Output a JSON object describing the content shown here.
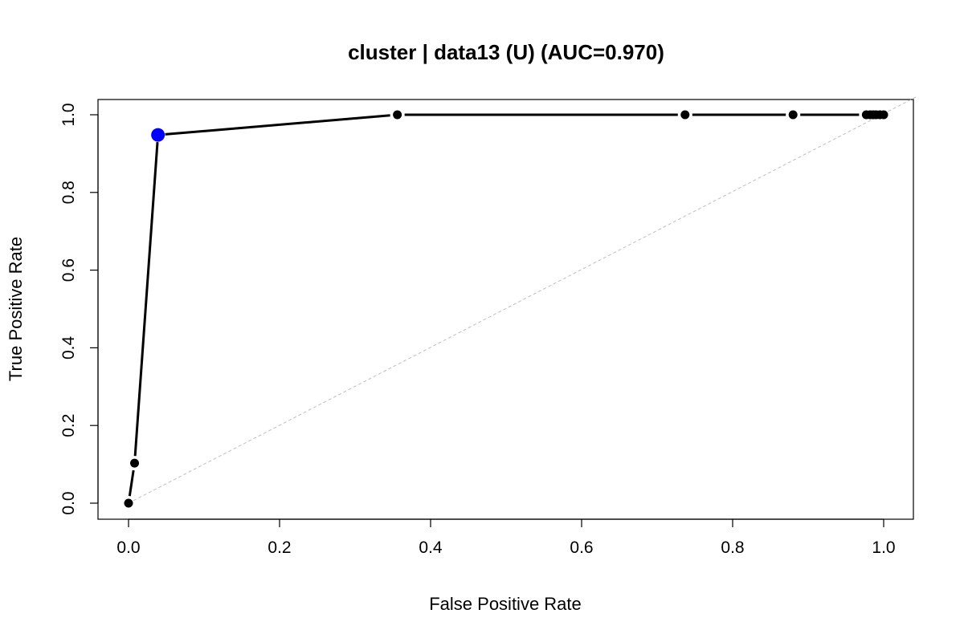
{
  "chart_data": {
    "type": "line",
    "title": "cluster | data13 (U) (AUC=0.970)",
    "xlabel": "False Positive Rate",
    "ylabel": "True Positive Rate",
    "xlim": [
      0,
      1
    ],
    "ylim": [
      0,
      1
    ],
    "xticks": [
      "0.0",
      "0.2",
      "0.4",
      "0.6",
      "0.8",
      "1.0"
    ],
    "yticks": [
      "0.0",
      "0.2",
      "0.4",
      "0.6",
      "0.8",
      "1.0"
    ],
    "grid": false,
    "series": [
      {
        "color": "#000000",
        "x": [
          0.0,
          0.008,
          0.039,
          0.356,
          0.737,
          0.88,
          0.977,
          0.982,
          0.986,
          0.99,
          0.995,
          1.0
        ],
        "y": [
          0.0,
          0.103,
          0.948,
          1.0,
          1.0,
          1.0,
          1.0,
          1.0,
          1.0,
          1.0,
          1.0,
          1.0
        ]
      }
    ],
    "highlight_point": {
      "x": 0.039,
      "y": 0.948,
      "color": "#0000ff"
    },
    "reference_line": {
      "x": [
        0,
        1
      ],
      "y": [
        0,
        1
      ],
      "color": "#bebebe",
      "style": "dashed"
    }
  }
}
